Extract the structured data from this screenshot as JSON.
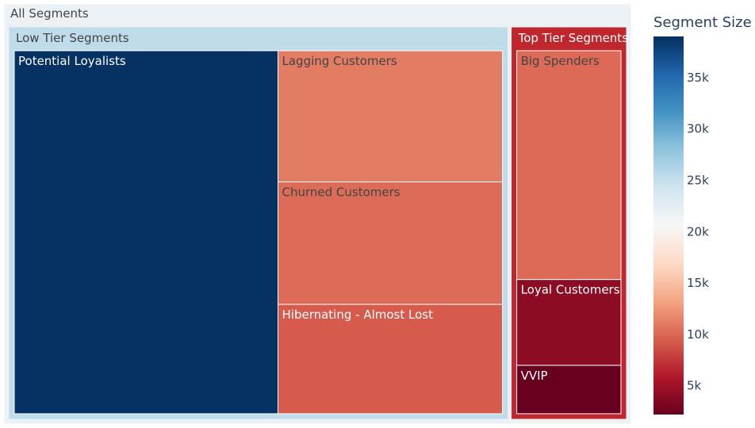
{
  "chart_data": {
    "type": "treemap",
    "title": "",
    "root": {
      "label": "All Segments",
      "value": 88700,
      "color": "#ECF1F5",
      "children": [
        {
          "label": "Low Tier Segments",
          "value": 72200,
          "color": "#BFDCEA",
          "children": [
            {
              "label": "Potential Loyalists",
              "value": 39000,
              "color": "#063263"
            },
            {
              "label": "Lagging Customers",
              "value": 12000,
              "color": "#E27D64"
            },
            {
              "label": "Churned Customers",
              "value": 11200,
              "color": "#DC6B57"
            },
            {
              "label": "Hibernating - Almost Lost",
              "value": 10000,
              "color": "#D65B4C"
            }
          ]
        },
        {
          "label": "Top Tier Segments",
          "value": 16500,
          "color": "#C0272D",
          "children": [
            {
              "label": "Big Spenders",
              "value": 10400,
              "color": "#DC6A56"
            },
            {
              "label": "Loyal Customers",
              "value": 3900,
              "color": "#8D0C25"
            },
            {
              "label": "VVIP",
              "value": 2200,
              "color": "#67001F"
            }
          ]
        }
      ]
    },
    "colorbar": {
      "title": "Segment Size",
      "min": 2200,
      "max": 39000,
      "ticks": [
        5000,
        10000,
        15000,
        20000,
        25000,
        30000,
        35000
      ],
      "tick_labels": [
        "5k",
        "10k",
        "15k",
        "20k",
        "25k",
        "30k",
        "35k"
      ],
      "colorscale": [
        "#67001F",
        "#B2182B",
        "#D6604D",
        "#F4A582",
        "#FDDBC7",
        "#F7F7F7",
        "#D1E5F0",
        "#92C5DE",
        "#4393C3",
        "#2166AC",
        "#053061"
      ]
    }
  }
}
